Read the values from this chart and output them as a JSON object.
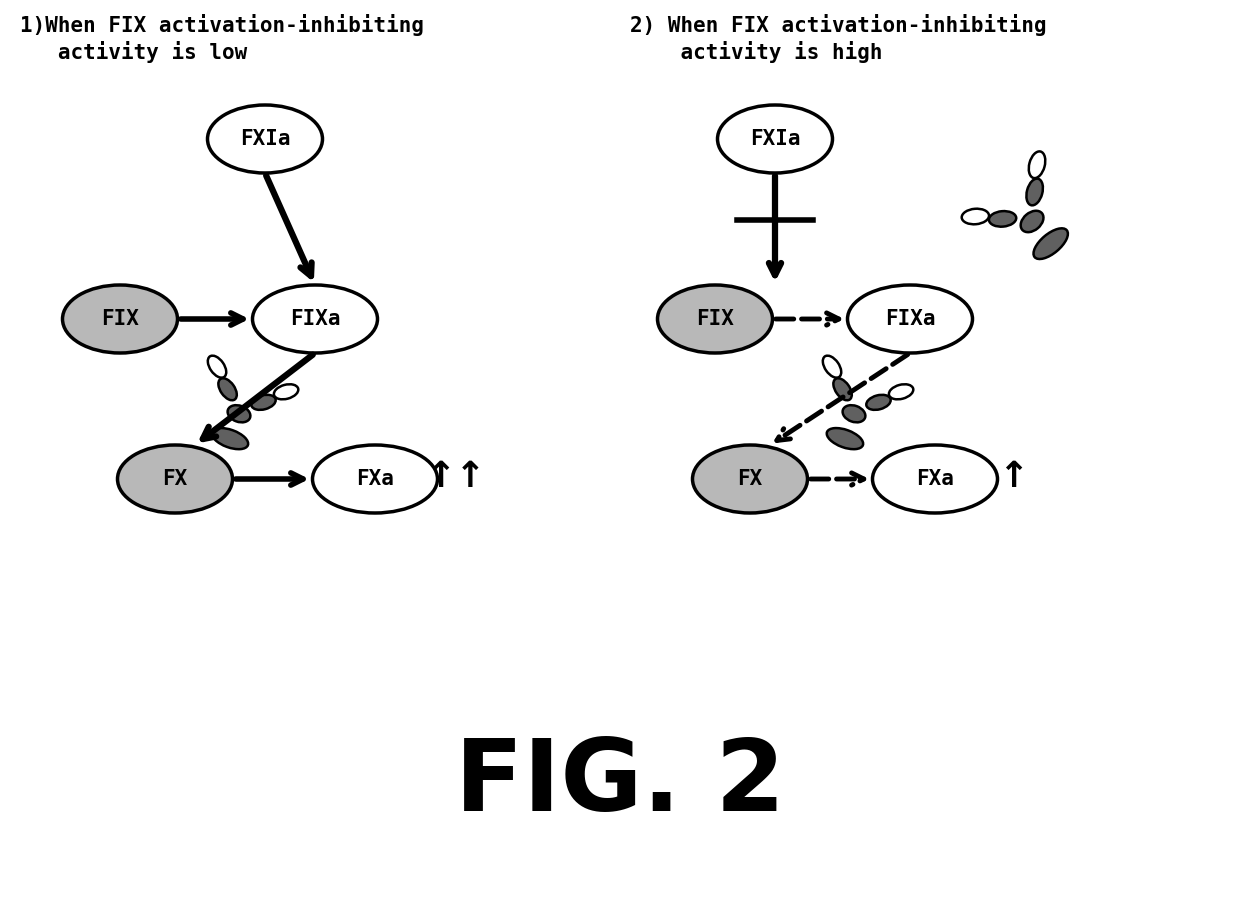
{
  "title": "FIG. 2",
  "panel1_title_line1": "1)When FIX activation-inhibiting",
  "panel1_title_line2": "   activity is low",
  "panel2_title_line1": "2) When FIX activation-inhibiting",
  "panel2_title_line2": "    activity is high",
  "bg_color": "#ffffff",
  "ellipse_fill_white": "#ffffff",
  "ellipse_fill_gray": "#b8b8b8",
  "text_color": "#000000",
  "font_size_title": 15,
  "font_size_label": 15,
  "font_size_fig": 72,
  "antibody_dark": "#606060",
  "antibody_mid": "#888888"
}
